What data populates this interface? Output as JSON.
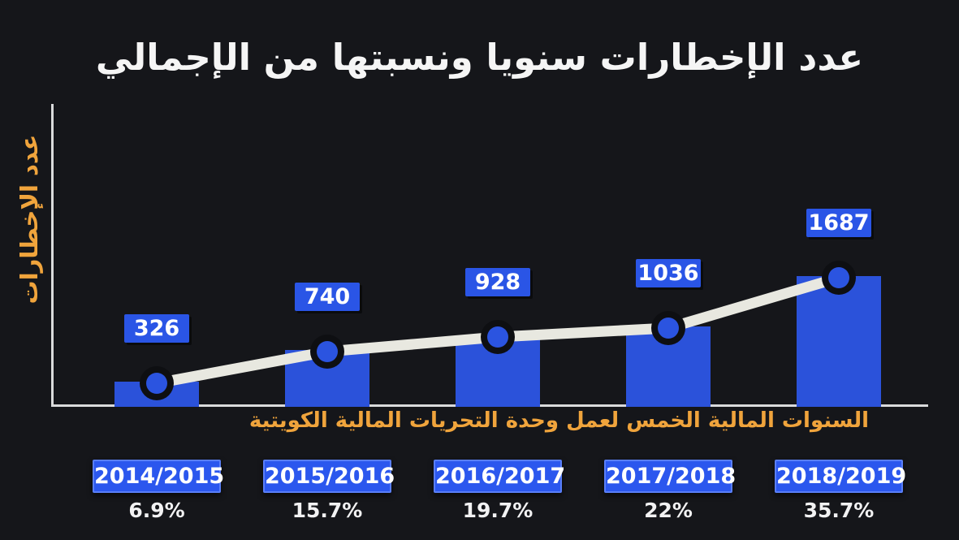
{
  "title": "عدد الإخطارات سنويا ونسبتها من الإجمالي",
  "chart_data": {
    "type": "bar+line",
    "title": "عدد الإخطارات سنويا ونسبتها من الإجمالي",
    "categories": [
      "2014/2015",
      "2015/2016",
      "2016/2017",
      "2017/2018",
      "2018/2019"
    ],
    "values": [
      326,
      740,
      928,
      1036,
      1687
    ],
    "percent_of_total": [
      "6.9%",
      "15.7%",
      "19.7%",
      "22%",
      "35.7%"
    ],
    "value_labels_shown": true,
    "line_series": "trend line through the same yearly values with circular markers",
    "xlabel": "السنوات المالية الخمس لعمل وحدة التحريات المالية الكويتية",
    "ylabel": "عدد الإخطارات",
    "ylim": [
      0,
      1800
    ],
    "grid": false,
    "legend": false,
    "colors": {
      "background": "#15161a",
      "bar": "#2b52da",
      "badge": "#2a55e6",
      "year_badge": "#2b57ee",
      "line": "#e8e8e0",
      "marker_inner": "#2b54e0",
      "marker_ring": "#0e0f12",
      "axis": "#d9dadb",
      "axis_label_orange": "#f0a43c",
      "title_text": "#f5f5f5",
      "percent_text": "#f2f2f3"
    }
  }
}
